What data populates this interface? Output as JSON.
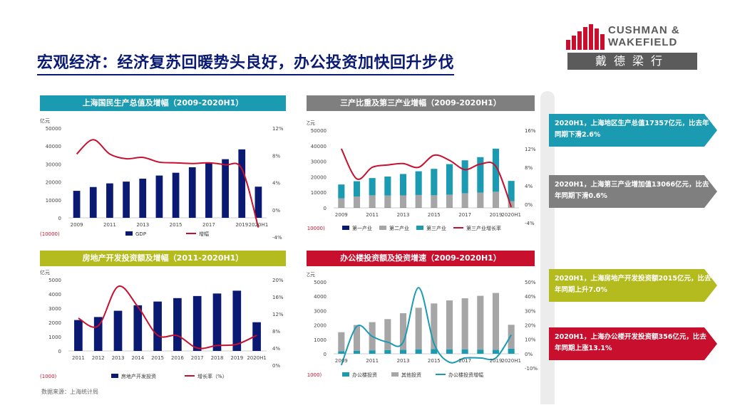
{
  "title": "宏观经济：经济复苏回暖势头良好，办公投资加快回升步伐",
  "logo": {
    "line1": "CUSHMAN &",
    "line2": "WAKEFIELD",
    "cn": "戴德梁行",
    "brand_red": "#c8102e",
    "grey": "#5b5b5b"
  },
  "source": "数据来源：上海统计局",
  "colors": {
    "navy": "#0a1a73",
    "red": "#c8102e",
    "teal": "#1a9bb2",
    "grey": "#a6a6a6",
    "gdp_header": "#1a9bb2",
    "tertiary_header": "#7f7f7f",
    "realestate_header": "#b3bb1e",
    "office_header": "#c8102e"
  },
  "panels": [
    {
      "title": "上海国民生产总值及增幅（2009-2020H1）",
      "header_color": "#1a9bb2"
    },
    {
      "title": "三产比重及第三产业增幅（2009-2020H1）",
      "header_color": "#7f7f7f"
    },
    {
      "title": "房地产开发投资额及增幅（2011-2020H1）",
      "header_color": "#b3bb1e"
    },
    {
      "title": "办公楼投资额及投资增速（2009-2020H1）",
      "header_color": "#c8102e"
    }
  ],
  "callouts": [
    {
      "text": "2020H1，上海地区生产总值17357亿元，比去年同期下滑2.6%",
      "color": "#1a9bb2"
    },
    {
      "text": "2020H1，上海第三产业增加值13066亿元，比去年同期下滑0.6%",
      "color": "#7f7f7f"
    },
    {
      "text": "2020H1，上海房地产开发投资额2015亿元，比去年同期上升7.0%",
      "color": "#b3bb1e"
    },
    {
      "text": "2020H1，上海办公楼开发投资额356亿元，比去年同期上涨13.1%",
      "color": "#c8102e"
    }
  ],
  "chart_data": [
    {
      "type": "bar",
      "unit": "亿元",
      "categories": [
        "2009",
        "2010",
        "2011",
        "2012",
        "2013",
        "2014",
        "2015",
        "2016",
        "2017",
        "2018",
        "2019",
        "2020H1"
      ],
      "x_tick_labels": [
        "2009",
        "2011",
        "2013",
        "2015",
        "2017",
        "2019",
        "2020H1"
      ],
      "series": [
        {
          "name": "GDP",
          "kind": "bar",
          "axis": "left",
          "color": "#0a1a73",
          "values": [
            15046,
            17166,
            19196,
            20182,
            21818,
            23568,
            25123,
            28179,
            30633,
            32680,
            38155,
            17357
          ]
        },
        {
          "name": "增幅",
          "kind": "line",
          "axis": "right",
          "color": "#c8102e",
          "values": [
            8.2,
            10.3,
            8.2,
            7.5,
            7.7,
            7.0,
            6.9,
            6.8,
            6.9,
            6.6,
            6.0,
            -2.6
          ]
        }
      ],
      "ylim": [
        0,
        50000
      ],
      "yticks": [
        "0",
        "10000",
        "20000",
        "30000",
        "40000",
        "50000"
      ],
      "y2lim": [
        -4,
        12
      ],
      "y2ticks": [
        "-4%",
        "0%",
        "4%",
        "8%",
        "12%"
      ],
      "y_neg_label": "(10000)"
    },
    {
      "type": "bar",
      "unit": "亿元",
      "categories": [
        "2009",
        "2010",
        "2011",
        "2012",
        "2013",
        "2014",
        "2015",
        "2016",
        "2017",
        "2018",
        "2019",
        "2020H1"
      ],
      "x_tick_labels": [
        "2009",
        "2011",
        "2013",
        "2015",
        "2017",
        "2019",
        "2020H1"
      ],
      "series": [
        {
          "name": "第一产业",
          "kind": "stack",
          "axis": "left",
          "color": "#0a1a73",
          "values": [
            113,
            114,
            124,
            127,
            129,
            124,
            110,
            110,
            111,
            104,
            103,
            38
          ]
        },
        {
          "name": "第二产业",
          "kind": "stack",
          "axis": "left",
          "color": "#a6a6a6",
          "values": [
            6001,
            7218,
            7959,
            7854,
            7909,
            8167,
            7991,
            8407,
            9330,
            9733,
            10299,
            4253
          ]
        },
        {
          "name": "第三产业",
          "kind": "stack",
          "axis": "left",
          "color": "#1a9bb2",
          "values": [
            8931,
            9834,
            11113,
            12199,
            13780,
            15276,
            17022,
            19662,
            21192,
            22843,
            27753,
            13066
          ]
        },
        {
          "name": "第三产业增长率",
          "kind": "line",
          "axis": "right",
          "color": "#c8102e",
          "values": [
            12.0,
            5.5,
            8.0,
            8.5,
            8.8,
            8.0,
            10.6,
            9.5,
            7.5,
            8.7,
            8.2,
            -0.6
          ]
        }
      ],
      "ylim": [
        0,
        50000
      ],
      "yticks": [
        "0",
        "10000",
        "20000",
        "30000",
        "40000",
        "50000"
      ],
      "y2lim": [
        -4,
        16
      ],
      "y2ticks": [
        "-4%",
        "0%",
        "4%",
        "8%",
        "12%",
        "16%"
      ],
      "y_neg_label": "(10000)"
    },
    {
      "type": "bar",
      "unit": "亿元",
      "categories": [
        "2011",
        "2012",
        "2013",
        "2014",
        "2015",
        "2016",
        "2017",
        "2018",
        "2019",
        "2020H1"
      ],
      "x_tick_labels": [
        "2011",
        "2012",
        "2013",
        "2014",
        "2015",
        "2016",
        "2017",
        "2018",
        "2019",
        "2020H1"
      ],
      "series": [
        {
          "name": "房地产开发投资",
          "kind": "bar",
          "axis": "left",
          "color": "#0a1a73",
          "values": [
            2170,
            2381,
            2820,
            3206,
            3469,
            3709,
            3856,
            4033,
            4231,
            2015
          ]
        },
        {
          "name": "增长率（%）",
          "kind": "line",
          "axis": "right",
          "color": "#c8102e",
          "values": [
            11.0,
            9.2,
            18.4,
            13.7,
            7.0,
            6.9,
            4.0,
            4.6,
            4.9,
            7.0
          ]
        }
      ],
      "ylim": [
        0,
        5000
      ],
      "yticks": [
        "0",
        "1000",
        "2000",
        "3000",
        "4000",
        "5000"
      ],
      "y2lim": [
        0,
        20
      ],
      "y2ticks": [
        "0%",
        "4%",
        "8%",
        "12%",
        "16%",
        "20%"
      ],
      "y_neg_label": "(1000)"
    },
    {
      "type": "bar",
      "unit": "亿元",
      "categories": [
        "2009",
        "2010",
        "2011",
        "2012",
        "2013",
        "2014",
        "2015",
        "2016",
        "2017",
        "2018",
        "2019",
        "2020H1"
      ],
      "x_tick_labels": [
        "2009",
        "2011",
        "2013",
        "2015",
        "2017",
        "2019",
        "2020H1"
      ],
      "series": [
        {
          "name": "办公楼投资",
          "kind": "stack",
          "axis": "left",
          "color": "#1a9bb2",
          "values": [
            180,
            215,
            240,
            260,
            280,
            310,
            330,
            310,
            300,
            290,
            280,
            356
          ]
        },
        {
          "name": "其他投资",
          "kind": "stack",
          "axis": "left",
          "color": "#a6a6a6",
          "values": [
            1320,
            1785,
            1960,
            2150,
            2540,
            2890,
            3170,
            3400,
            3560,
            3740,
            3950,
            1660
          ]
        },
        {
          "name": "办公楼投资增幅",
          "kind": "line",
          "axis": "right",
          "color": "#1a9bb2",
          "values": [
            -8,
            19,
            12,
            8,
            8,
            46,
            7,
            -6,
            -3,
            -3,
            -3,
            13.1
          ]
        }
      ],
      "ylim": [
        0,
        5000
      ],
      "yticks": [
        "0",
        "1000",
        "2000",
        "3000",
        "4000",
        "5000"
      ],
      "y2lim": [
        -10,
        50
      ],
      "y2ticks": [
        "-10%",
        "0%",
        "10%",
        "20%",
        "30%",
        "40%",
        "50%"
      ],
      "y_neg_label": "(1000)"
    }
  ]
}
